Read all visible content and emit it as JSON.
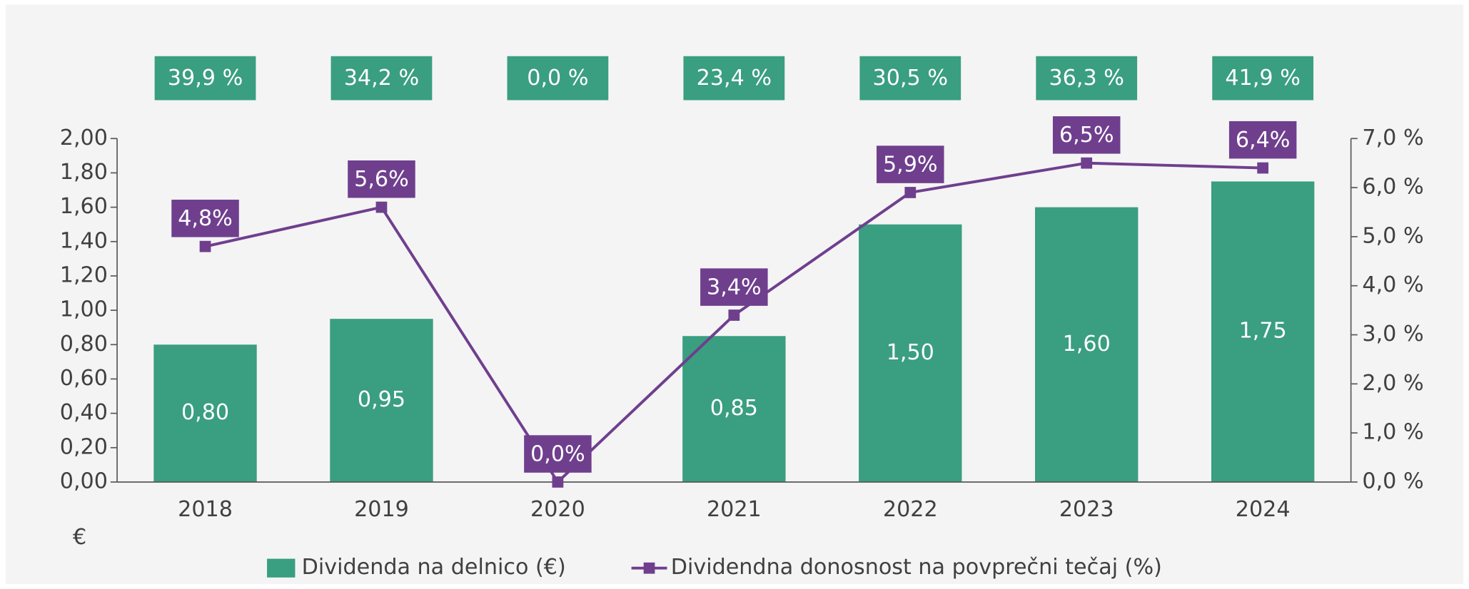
{
  "chart_data": {
    "type": "combo",
    "categories": [
      "2018",
      "2019",
      "2020",
      "2021",
      "2022",
      "2023",
      "2024"
    ],
    "top_labels": [
      "39,9 %",
      "34,2 %",
      "0,0 %",
      "23,4 %",
      "30,5 %",
      "36,3 %",
      "41,9 %"
    ],
    "top_label_color": "#3a9e80",
    "y_axis_label": "€",
    "series": [
      {
        "name": "Dividenda na delnico (€)",
        "type": "bar",
        "color": "#3a9e80",
        "values": [
          0.8,
          0.95,
          0,
          0.85,
          1.5,
          1.6,
          1.75
        ],
        "value_labels": [
          "0,80",
          "0,95",
          null,
          "0,85",
          "1,50",
          "1,60",
          "1,75"
        ]
      },
      {
        "name": "Dividendna donosnost na povprečni tečaj (%)",
        "type": "line",
        "axis": "y2",
        "color": "#6f3f8e",
        "values": [
          4.8,
          5.6,
          0.0,
          3.4,
          5.9,
          6.5,
          6.4
        ],
        "value_labels": [
          "4,8%",
          "5,6%",
          "0,0%",
          "3,4%",
          "5,9%",
          "6,5%",
          "6,4%"
        ]
      }
    ],
    "ylim": [
      0,
      2
    ],
    "yticks": [
      {
        "value": 0,
        "label": "0,00"
      },
      {
        "value": 0.2,
        "label": "0,20"
      },
      {
        "value": 0.4,
        "label": "0,40"
      },
      {
        "value": 0.6,
        "label": "0,60"
      },
      {
        "value": 0.8,
        "label": "0,80"
      },
      {
        "value": 1.0,
        "label": "1,00"
      },
      {
        "value": 1.2,
        "label": "1,20"
      },
      {
        "value": 1.4,
        "label": "1,40"
      },
      {
        "value": 1.6,
        "label": "1,60"
      },
      {
        "value": 1.8,
        "label": "1,80"
      },
      {
        "value": 2.0,
        "label": "2,00"
      }
    ],
    "y2lim": [
      0,
      7
    ],
    "y2ticks": [
      {
        "value": 0,
        "label": "0,0 %"
      },
      {
        "value": 1,
        "label": "1,0 %"
      },
      {
        "value": 2,
        "label": "2,0 %"
      },
      {
        "value": 3,
        "label": "3,0 %"
      },
      {
        "value": 4,
        "label": "4,0 %"
      },
      {
        "value": 5,
        "label": "5,0 %"
      },
      {
        "value": 6,
        "label": "6,0 %"
      },
      {
        "value": 7,
        "label": "7,0 %"
      }
    ],
    "grid": false,
    "legend": "bottom"
  }
}
